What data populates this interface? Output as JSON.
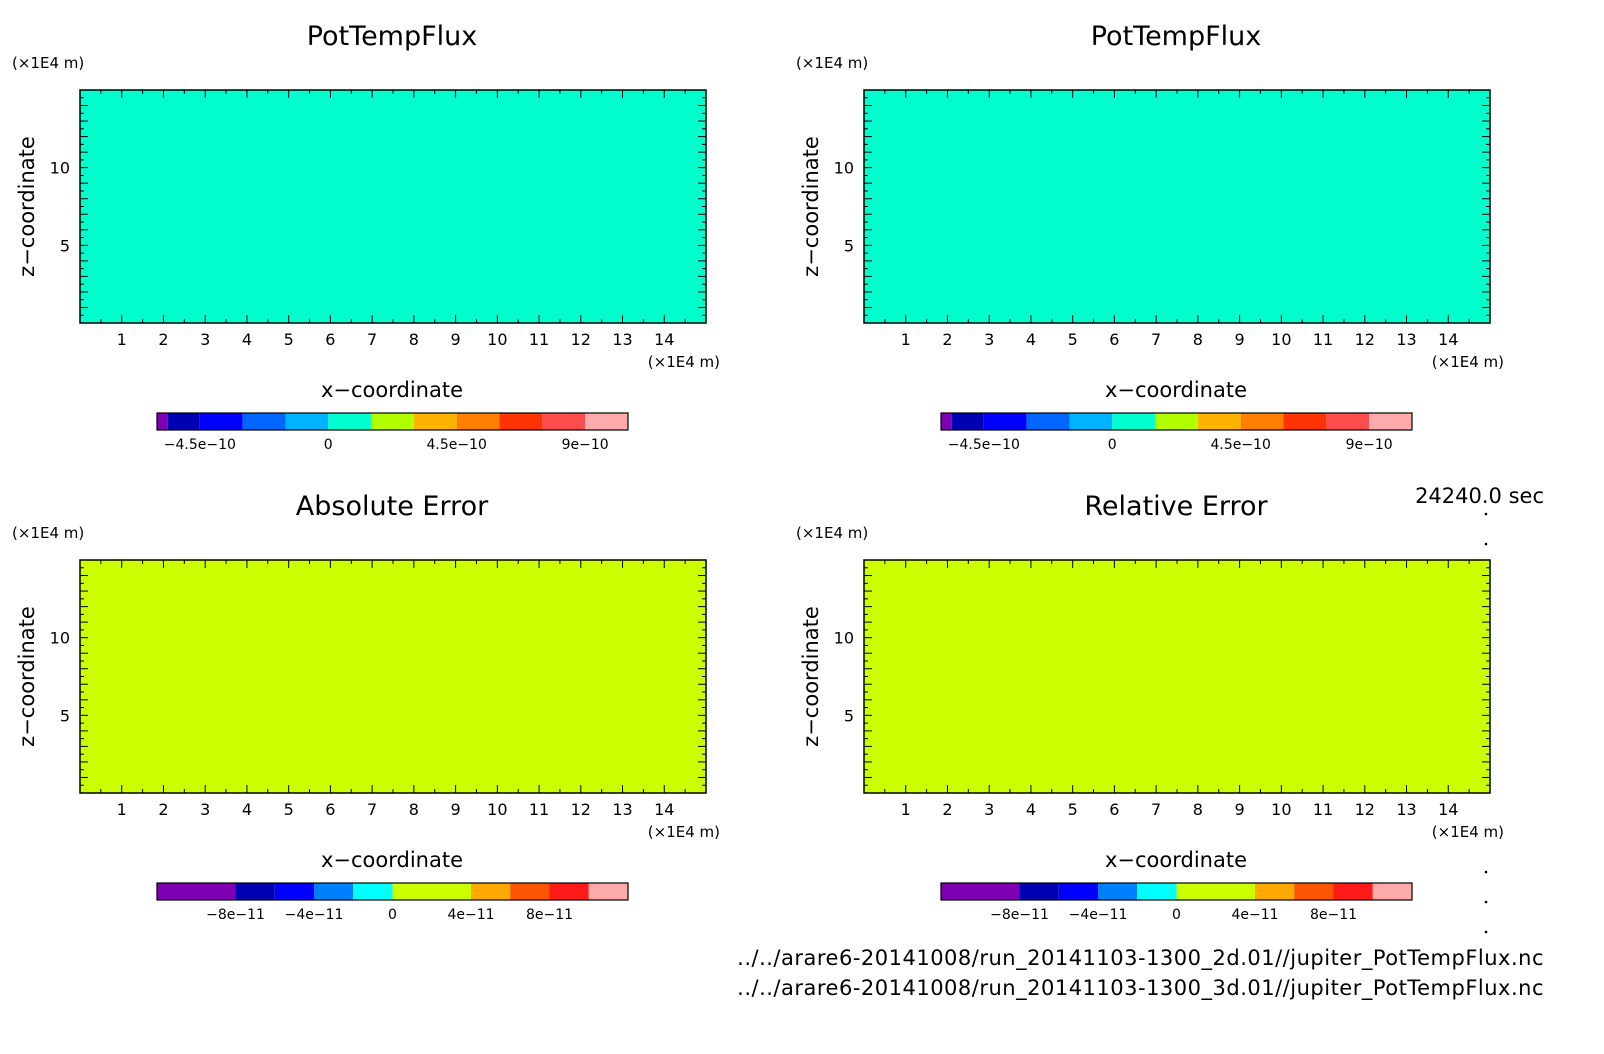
{
  "time_label": "24240.0 sec",
  "files": [
    "../../arare6-20141008/run_20141103-1300_2d.01//jupiter_PotTempFlux.nc",
    "../../arare6-20141008/run_20141103-1300_3d.01//jupiter_PotTempFlux.nc"
  ],
  "chart_data": [
    {
      "type": "heatmap",
      "title": "PotTempFlux",
      "xlabel": "x−coordinate",
      "ylabel": "z−coordinate",
      "x_unit": "(×1E4 m)",
      "y_unit": "(×1E4 m)",
      "xlim": [
        0,
        15
      ],
      "ylim": [
        0,
        15
      ],
      "x_ticks": [
        1,
        2,
        3,
        4,
        5,
        6,
        7,
        8,
        9,
        10,
        11,
        12,
        13,
        14
      ],
      "y_ticks": [
        5,
        10
      ],
      "field_value": 0,
      "field_color": "#00ffcc",
      "colorbar": {
        "colors": [
          "#7f00b2",
          "#0000b2",
          "#0000ff",
          "#0066ff",
          "#00b2ff",
          "#00ffcc",
          "#b2ff00",
          "#ffb200",
          "#ff7f00",
          "#ff3300",
          "#ff4c4c",
          "#ffaaaa"
        ],
        "boundaries": [
          -6e-10,
          -5.625e-10,
          -4.5e-10,
          -3e-10,
          -1.5e-10,
          0,
          1.5e-10,
          3e-10,
          4.5e-10,
          6e-10,
          7.5e-10,
          9e-10,
          1.05e-09
        ],
        "tick_labels": [
          {
            "value": -4.5e-10,
            "label": "−4.5e−10"
          },
          {
            "value": 0,
            "label": "0"
          },
          {
            "value": 4.5e-10,
            "label": "4.5e−10"
          },
          {
            "value": 9e-10,
            "label": "9e−10"
          }
        ]
      }
    },
    {
      "type": "heatmap",
      "title": "PotTempFlux",
      "xlabel": "x−coordinate",
      "ylabel": "z−coordinate",
      "x_unit": "(×1E4 m)",
      "y_unit": "(×1E4 m)",
      "xlim": [
        0,
        15
      ],
      "ylim": [
        0,
        15
      ],
      "x_ticks": [
        1,
        2,
        3,
        4,
        5,
        6,
        7,
        8,
        9,
        10,
        11,
        12,
        13,
        14
      ],
      "y_ticks": [
        5,
        10
      ],
      "field_value": 0,
      "field_color": "#00ffcc",
      "colorbar": {
        "colors": [
          "#7f00b2",
          "#0000b2",
          "#0000ff",
          "#0066ff",
          "#00b2ff",
          "#00ffcc",
          "#b2ff00",
          "#ffb200",
          "#ff7f00",
          "#ff3300",
          "#ff4c4c",
          "#ffaaaa"
        ],
        "boundaries": [
          -6e-10,
          -5.625e-10,
          -4.5e-10,
          -3e-10,
          -1.5e-10,
          0,
          1.5e-10,
          3e-10,
          4.5e-10,
          6e-10,
          7.5e-10,
          9e-10,
          1.05e-09
        ],
        "tick_labels": [
          {
            "value": -4.5e-10,
            "label": "−4.5e−10"
          },
          {
            "value": 0,
            "label": "0"
          },
          {
            "value": 4.5e-10,
            "label": "4.5e−10"
          },
          {
            "value": 9e-10,
            "label": "9e−10"
          }
        ]
      }
    },
    {
      "type": "heatmap",
      "title": "Absolute Error",
      "xlabel": "x−coordinate",
      "ylabel": "z−coordinate",
      "x_unit": "(×1E4 m)",
      "y_unit": "(×1E4 m)",
      "xlim": [
        0,
        15
      ],
      "ylim": [
        0,
        15
      ],
      "x_ticks": [
        1,
        2,
        3,
        4,
        5,
        6,
        7,
        8,
        9,
        10,
        11,
        12,
        13,
        14
      ],
      "y_ticks": [
        5,
        10
      ],
      "field_value": 0,
      "field_color": "#ccff00",
      "colorbar": {
        "colors": [
          "#7f00b2",
          "#0000b2",
          "#0000ff",
          "#0080ff",
          "#00ffff",
          "#ccff00",
          "#ffaa00",
          "#ff5500",
          "#ff1a1a",
          "#ffaaaa"
        ],
        "boundaries": [
          -1.2e-10,
          -8e-11,
          -6e-11,
          -4e-11,
          -2e-11,
          0,
          4e-11,
          6e-11,
          8e-11,
          1e-10,
          1.2e-10
        ],
        "tick_labels": [
          {
            "value": -8e-11,
            "label": "−8e−11"
          },
          {
            "value": -4e-11,
            "label": "−4e−11"
          },
          {
            "value": 0,
            "label": "0"
          },
          {
            "value": 4e-11,
            "label": "4e−11"
          },
          {
            "value": 8e-11,
            "label": "8e−11"
          }
        ]
      }
    },
    {
      "type": "heatmap",
      "title": "Relative Error",
      "xlabel": "x−coordinate",
      "ylabel": "z−coordinate",
      "x_unit": "(×1E4 m)",
      "y_unit": "(×1E4 m)",
      "xlim": [
        0,
        15
      ],
      "ylim": [
        0,
        15
      ],
      "x_ticks": [
        1,
        2,
        3,
        4,
        5,
        6,
        7,
        8,
        9,
        10,
        11,
        12,
        13,
        14
      ],
      "y_ticks": [
        5,
        10
      ],
      "field_value": 0,
      "field_color": "#ccff00",
      "colorbar": {
        "colors": [
          "#7f00b2",
          "#0000b2",
          "#0000ff",
          "#0080ff",
          "#00ffff",
          "#ccff00",
          "#ffaa00",
          "#ff5500",
          "#ff1a1a",
          "#ffaaaa"
        ],
        "boundaries": [
          -1.2e-10,
          -8e-11,
          -6e-11,
          -4e-11,
          -2e-11,
          0,
          4e-11,
          6e-11,
          8e-11,
          1e-10,
          1.2e-10
        ],
        "tick_labels": [
          {
            "value": -8e-11,
            "label": "−8e−11"
          },
          {
            "value": -4e-11,
            "label": "−4e−11"
          },
          {
            "value": 0,
            "label": "0"
          },
          {
            "value": 4e-11,
            "label": "4e−11"
          },
          {
            "value": 8e-11,
            "label": "8e−11"
          }
        ]
      }
    }
  ]
}
